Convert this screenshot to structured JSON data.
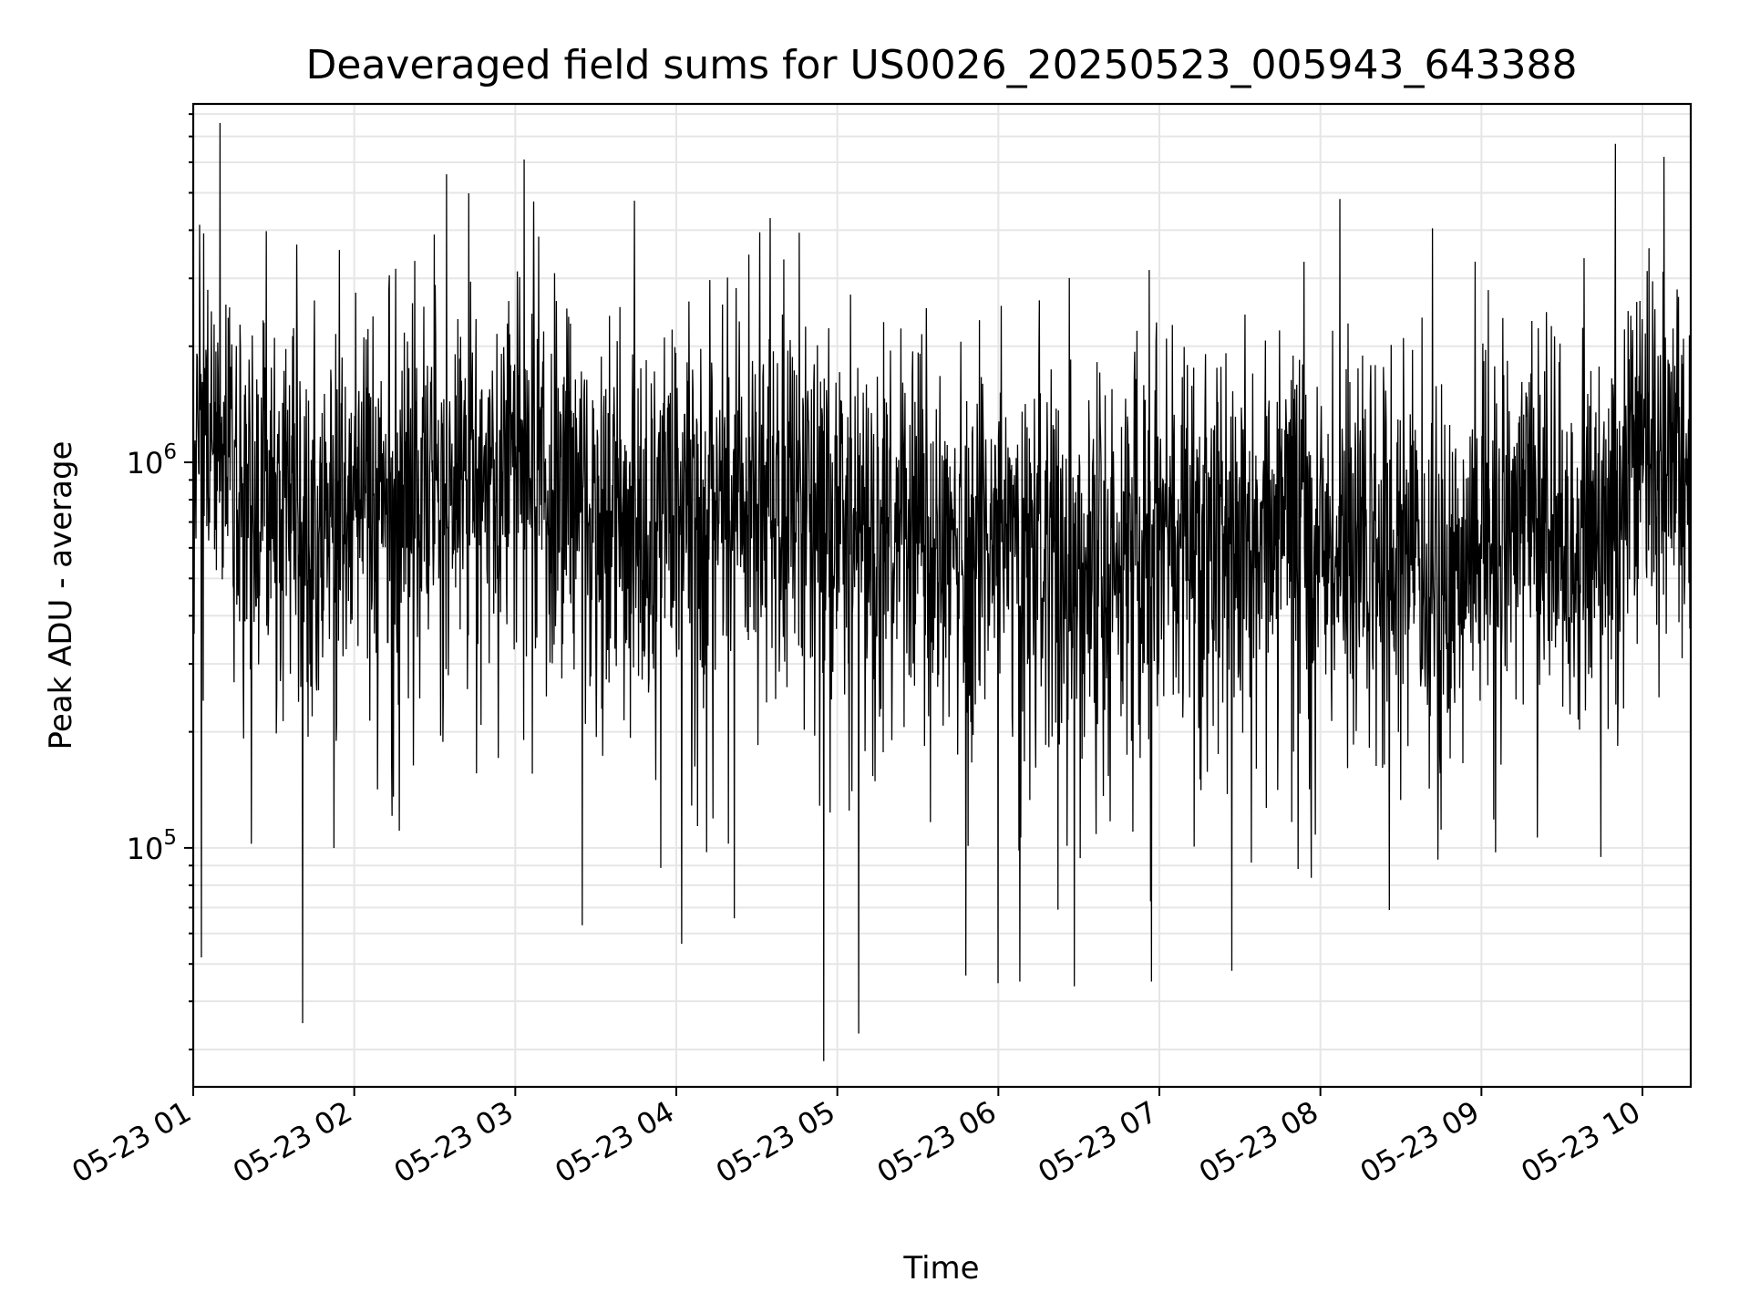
{
  "chart_data": {
    "type": "line",
    "title": "Deaveraged field sums for US0026_20250523_005943_643388",
    "xlabel": "Time",
    "ylabel": "Peak ADU - average",
    "x_start": "05-23 01:00",
    "x_end": "05-23 10:18",
    "yscale": "log",
    "ylim": [
      24000,
      8500000
    ],
    "grid": true,
    "legend": "none",
    "line_color": "#000000",
    "y_major_ticks": [
      {
        "value": 100000,
        "base": "10",
        "exp": "5"
      },
      {
        "value": 1000000,
        "base": "10",
        "exp": "6"
      }
    ],
    "x_ticks": [
      "05-23 01",
      "05-23 02",
      "05-23 03",
      "05-23 04",
      "05-23 05",
      "05-23 06",
      "05-23 07",
      "05-23 08",
      "05-23 09",
      "05-23 10"
    ],
    "series": [
      {
        "x": [
          "05-23 01:00",
          "05-23 01:15",
          "05-23 01:30",
          "05-23 01:45",
          "05-23 02:00",
          "05-23 02:15",
          "05-23 02:30",
          "05-23 02:45",
          "05-23 03:00",
          "05-23 03:15",
          "05-23 03:30",
          "05-23 03:45",
          "05-23 04:00",
          "05-23 04:15",
          "05-23 04:30",
          "05-23 04:45",
          "05-23 05:00",
          "05-23 05:15",
          "05-23 05:30",
          "05-23 05:45",
          "05-23 06:00",
          "05-23 06:15",
          "05-23 06:30",
          "05-23 06:45",
          "05-23 07:00",
          "05-23 07:15",
          "05-23 07:30",
          "05-23 07:45",
          "05-23 08:00",
          "05-23 08:15",
          "05-23 08:30",
          "05-23 08:45",
          "05-23 09:00",
          "05-23 09:15",
          "05-23 09:30",
          "05-23 09:45",
          "05-23 10:00",
          "05-23 10:15"
        ],
        "y": [
          1500000,
          1050000,
          820000,
          700000,
          780000,
          820000,
          850000,
          950000,
          980000,
          900000,
          800000,
          720000,
          700000,
          760000,
          850000,
          900000,
          700000,
          650000,
          620000,
          600000,
          580000,
          560000,
          560000,
          600000,
          720000,
          700000,
          680000,
          650000,
          640000,
          620000,
          600000,
          570000,
          600000,
          650000,
          620000,
          580000,
          1300000,
          1000000
        ]
      }
    ],
    "notable_values": [
      {
        "x": "05-23 01:03",
        "y": 52000
      },
      {
        "x": "05-23 03:25",
        "y": 63000
      },
      {
        "x": "05-23 04:55",
        "y": 28000
      },
      {
        "x": "05-23 05:08",
        "y": 33000
      },
      {
        "x": "05-23 06:08",
        "y": 45000
      },
      {
        "x": "05-23 06:57",
        "y": 45000
      },
      {
        "x": "05-23 07:27",
        "y": 48000
      },
      {
        "x": "05-23 09:50",
        "y": 6700000
      },
      {
        "x": "05-23 10:08",
        "y": 6200000
      },
      {
        "x": "05-23 04:35",
        "y": 4300000
      }
    ]
  }
}
